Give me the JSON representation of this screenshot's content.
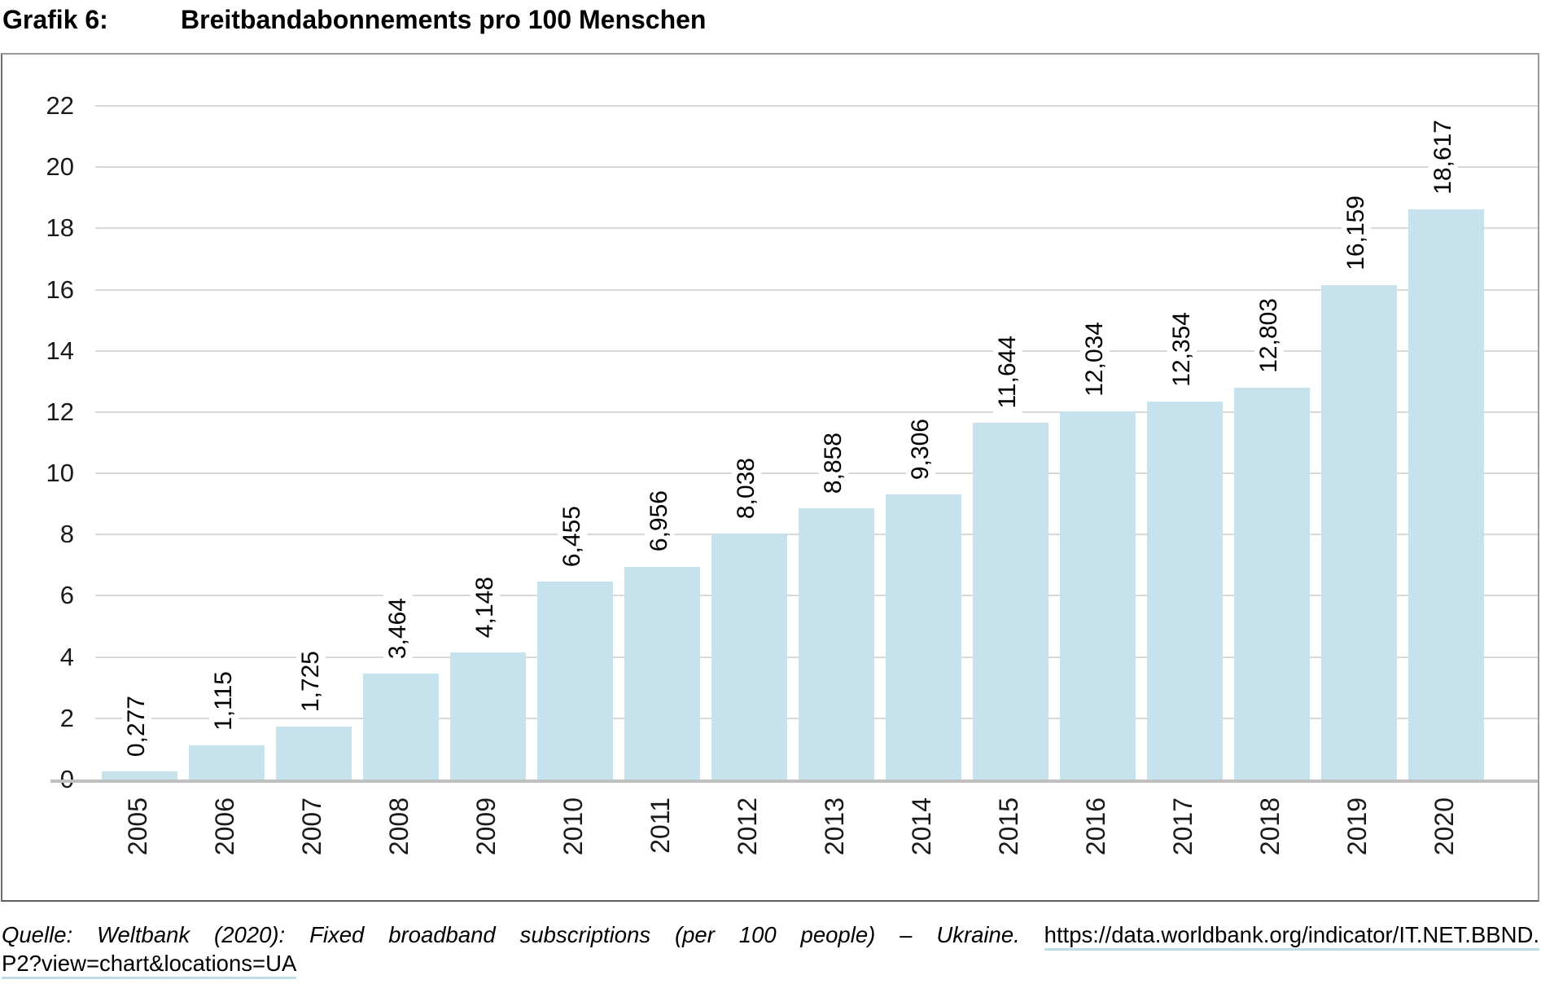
{
  "title": {
    "label": "Grafik 6:",
    "text": "Breitbandabonnements pro 100 Menschen"
  },
  "chart_data": {
    "type": "bar",
    "title": "Breitbandabonnements pro 100 Menschen",
    "categories": [
      "2005",
      "2006",
      "2007",
      "2008",
      "2009",
      "2010",
      "2011",
      "2012",
      "2013",
      "2014",
      "2015",
      "2016",
      "2017",
      "2018",
      "2019",
      "2020"
    ],
    "values": [
      0.277,
      1.115,
      1.725,
      3.464,
      4.148,
      6.455,
      6.956,
      8.038,
      8.858,
      9.306,
      11.644,
      12.034,
      12.354,
      12.803,
      16.159,
      18.617
    ],
    "value_labels": [
      "0,277",
      "1,115",
      "1,725",
      "3,464",
      "4,148",
      "6,455",
      "6,956",
      "8,038",
      "8,858",
      "9,306",
      "11,644",
      "12,034",
      "12,354",
      "12,803",
      "16,159",
      "18,617"
    ],
    "xlabel": "",
    "ylabel": "",
    "ylim": [
      0,
      22
    ],
    "ytick_step": 2,
    "grid": true,
    "legend": "none",
    "bar_color": "#c6e2ec",
    "gridline_color": "#d9d9d9",
    "axis_line_color": "#bfbfbf"
  },
  "source": {
    "italic_text": "Quelle: Weltbank (2020): Fixed broadband subscriptions (per 100 people) – Ukraine.",
    "link_line1": "https://data.worldbank.org/indicator/IT.NET.BBND.",
    "link_line2": "P2?view=chart&locations=UA"
  }
}
